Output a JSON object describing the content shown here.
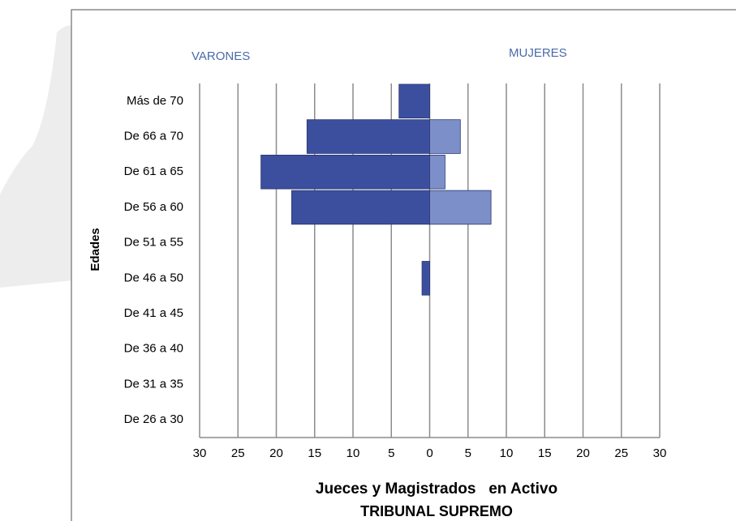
{
  "chart_data": {
    "type": "pyramid",
    "y_label": "Edades",
    "x_title": "Jueces y Magistrados   en Activo",
    "subtitle": "TRIBUNAL SUPREMO",
    "categories": [
      "Más de 70",
      "De 66 a 70",
      "De 61 a 65",
      "De 56 a 60",
      "De 51 a 55",
      "De 46 a 50",
      "De 41 a 45",
      "De 36 a 40",
      "De 31 a 35",
      "De 26 a 30"
    ],
    "series": [
      {
        "name": "VARONES",
        "color": "#3b4f9e",
        "values": [
          -4,
          -16,
          -22,
          -18,
          0,
          -1,
          0,
          0,
          0,
          0
        ]
      },
      {
        "name": "MUJERES",
        "color": "#7d8fc9",
        "values": [
          0,
          4,
          2,
          8,
          0,
          0,
          0,
          0,
          0,
          0
        ]
      }
    ],
    "xlim": [
      -30,
      30
    ],
    "xticks": [
      {
        "value": -30,
        "label": "30"
      },
      {
        "value": -25,
        "label": "25"
      },
      {
        "value": -20,
        "label": "20"
      },
      {
        "value": -15,
        "label": "15"
      },
      {
        "value": -10,
        "label": "10"
      },
      {
        "value": -5,
        "label": "5"
      },
      0,
      5,
      10,
      15,
      20,
      25,
      30
    ],
    "grid": true
  }
}
